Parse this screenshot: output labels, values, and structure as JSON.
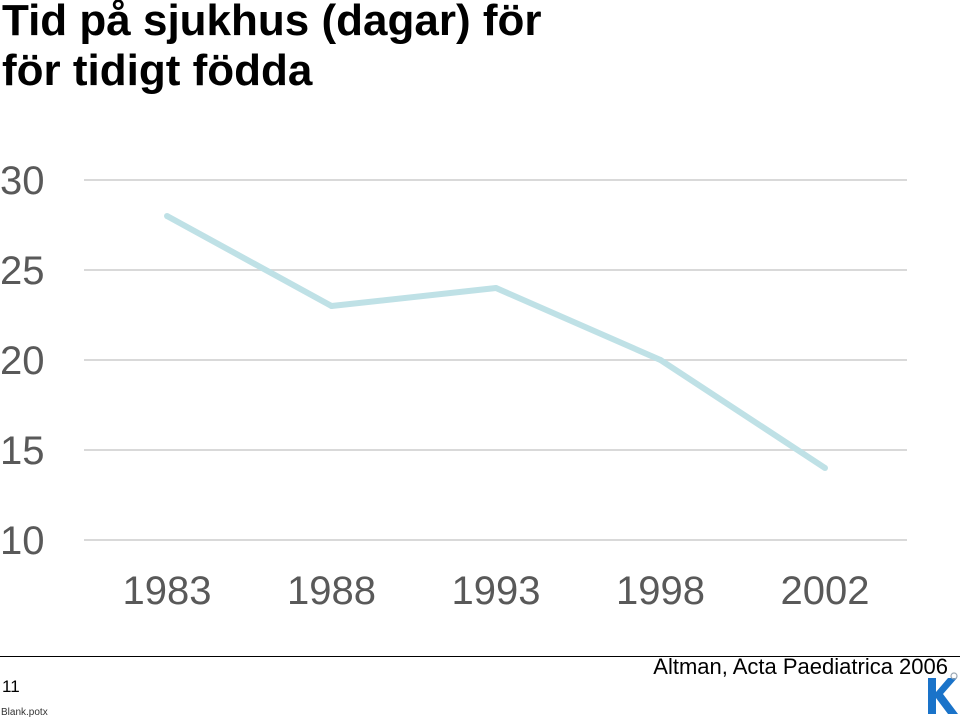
{
  "slide": {
    "title_lines": [
      "Tid på sjukhus (dagar) för",
      "för tidigt födda"
    ],
    "source": "Altman, Acta Paediatrica 2006",
    "page_number": "11",
    "file_name": "Blank.potx",
    "logo": {
      "letter": "K",
      "color": "#1a73c9",
      "icon": "k-logo-icon"
    }
  },
  "chart_data": {
    "type": "line",
    "categories": [
      "1983",
      "1988",
      "1993",
      "1998",
      "2002"
    ],
    "series": [
      {
        "values": [
          28,
          23,
          24,
          20,
          14
        ],
        "color": "#bfe1e6"
      }
    ],
    "y_ticks": [
      30,
      25,
      20,
      15,
      10
    ],
    "ylim": [
      10,
      30
    ],
    "grid": true,
    "gridline_color": "#d9d9d9",
    "tick_label_color": "#595959"
  }
}
